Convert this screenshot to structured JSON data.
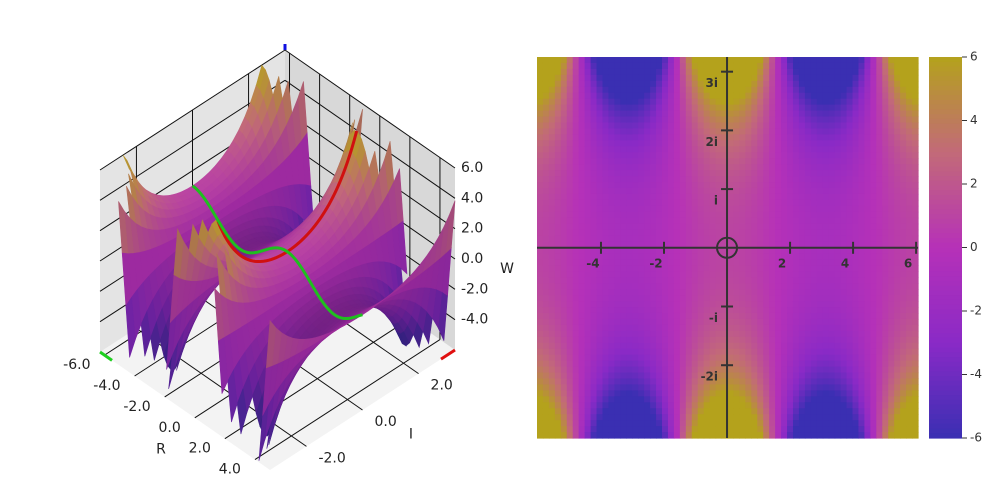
{
  "chart_data": [
    {
      "type": "surface",
      "xlabel": "R",
      "ylabel": "I",
      "zlabel": "W",
      "xlim": [
        -6.3,
        5
      ],
      "ylim": [
        -3.3,
        3.3
      ],
      "zlim": [
        -6,
        6
      ],
      "xticks": [
        {
          "value": -6,
          "label": "-6.0"
        },
        {
          "value": -4,
          "label": "-4.0"
        },
        {
          "value": -2,
          "label": "-2.0"
        },
        {
          "value": 0,
          "label": "0.0"
        },
        {
          "value": 2,
          "label": "2.0"
        },
        {
          "value": 4,
          "label": "4.0"
        }
      ],
      "yticks": [
        {
          "value": -2,
          "label": "-2.0"
        },
        {
          "value": 0,
          "label": "0.0"
        },
        {
          "value": 2,
          "label": "2.0"
        }
      ],
      "zticks": [
        {
          "value": -4,
          "label": "-4.0"
        },
        {
          "value": -2,
          "label": "-2.0"
        },
        {
          "value": 0,
          "label": "0.0"
        },
        {
          "value": 2,
          "label": "2.0"
        },
        {
          "value": 4,
          "label": "4.0"
        },
        {
          "value": 6,
          "label": "6.0"
        }
      ],
      "colors": [
        "#3a2fb2",
        "#8a2ac6",
        "#b631b8",
        "#c26a78",
        "#b4a21c"
      ]
    },
    {
      "type": "heatmap",
      "xlim": [
        -6.03,
        6.06
      ],
      "ylim": [
        -3.24,
        3.25
      ],
      "xticks": [
        -4,
        -2,
        2,
        4,
        6
      ],
      "yticks": [
        {
          "value": 3,
          "label": "3i"
        },
        {
          "value": 2,
          "label": "2i"
        },
        {
          "value": 1,
          "label": "i"
        },
        {
          "value": -1,
          "label": "-i"
        },
        {
          "value": -2,
          "label": "-2i"
        }
      ],
      "clim": [
        -6,
        6
      ],
      "cticks": [
        -6,
        -4,
        -2,
        0,
        2,
        4,
        6
      ],
      "colors": [
        "#3a2fb2",
        "#8a2ac6",
        "#b631b8",
        "#c26a78",
        "#b4a21c"
      ]
    }
  ]
}
